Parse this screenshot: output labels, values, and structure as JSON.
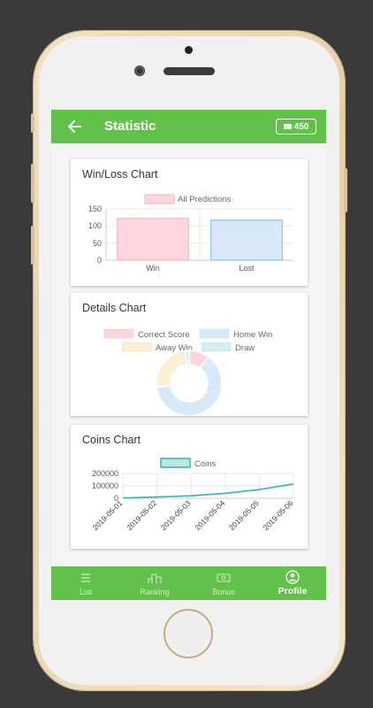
{
  "appbar": {
    "title": "Statistic",
    "coins": "450"
  },
  "winloss": {
    "title": "Win/Loss Chart",
    "legend": "All Predictions",
    "yticks": [
      "150",
      "100",
      "50",
      "0"
    ]
  },
  "details": {
    "title": "Details Chart",
    "legend": [
      "Correct Score",
      "Home Win",
      "Away Win",
      "Draw"
    ]
  },
  "coinschart": {
    "title": "Coins Chart",
    "legend": "Coins",
    "yticks": [
      "200000",
      "100000",
      "0"
    ]
  },
  "nav": [
    {
      "label": "List"
    },
    {
      "label": "Ranking"
    },
    {
      "label": "Bonus"
    },
    {
      "label": "Profile"
    }
  ],
  "colors": {
    "green": "#62c14a",
    "win": "#f3aeb8",
    "lost": "#7fb8e6",
    "coins_line": "#38b4ad"
  },
  "chart_data": [
    {
      "type": "bar",
      "title": "Win/Loss Chart",
      "categories": [
        "Win",
        "Lost"
      ],
      "series": [
        {
          "name": "All Predictions",
          "values": [
            122,
            117
          ]
        }
      ],
      "ylim": [
        0,
        150
      ]
    },
    {
      "type": "pie",
      "title": "Details Chart",
      "labels": [
        "Correct Score",
        "Home Win",
        "Away Win",
        "Draw"
      ],
      "values": [
        10,
        63,
        25,
        2
      ],
      "colors": [
        "#fbd7dd",
        "#d8e9f8",
        "#fdf0d2",
        "#d3eeee"
      ]
    },
    {
      "type": "line",
      "title": "Coins Chart",
      "x": [
        "2019-05-01",
        "2019-05-02",
        "2019-05-03",
        "2019-05-04",
        "2019-05-05",
        "2019-05-06"
      ],
      "series": [
        {
          "name": "Coins",
          "values": [
            2000,
            10000,
            20000,
            40000,
            70000,
            115000
          ]
        }
      ],
      "ylim": [
        0,
        200000
      ]
    }
  ]
}
